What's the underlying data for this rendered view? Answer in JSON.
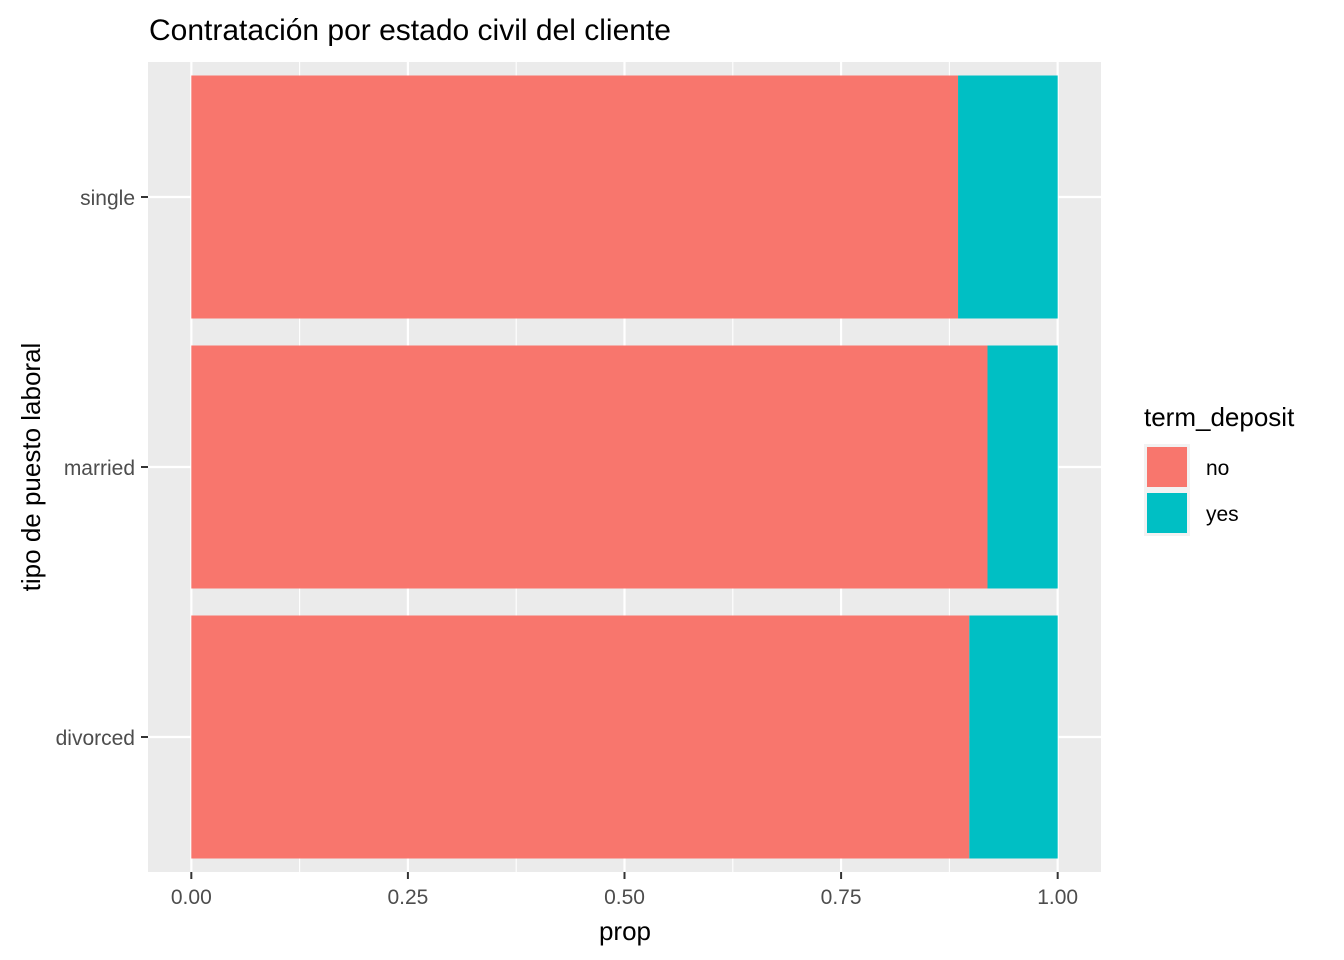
{
  "chart_data": {
    "type": "bar",
    "orientation": "horizontal",
    "stacked": true,
    "title": "Contratación por estado civil del cliente",
    "xlabel": "prop",
    "ylabel": "tipo de puesto laboral",
    "categories": [
      "divorced",
      "married",
      "single"
    ],
    "series": [
      {
        "name": "no",
        "values": [
          0.898,
          0.919,
          0.885
        ],
        "color": "#F8766D"
      },
      {
        "name": "yes",
        "values": [
          0.102,
          0.081,
          0.115
        ],
        "color": "#00BFC4"
      }
    ],
    "xlim": [
      -0.05,
      1.05
    ],
    "xticks": [
      0,
      0.25,
      0.5,
      0.75,
      1
    ],
    "xtick_labels": [
      "0.00",
      "0.25",
      "0.50",
      "0.75",
      "1.00"
    ],
    "grid": true,
    "legend": {
      "title": "term_deposit",
      "position": "right"
    },
    "colors": {
      "panel": "#EBEBEB",
      "grid": "#FFFFFF",
      "text": "#000000",
      "tick_text": "#4D4D4D",
      "tick_mark": "#333333"
    }
  }
}
